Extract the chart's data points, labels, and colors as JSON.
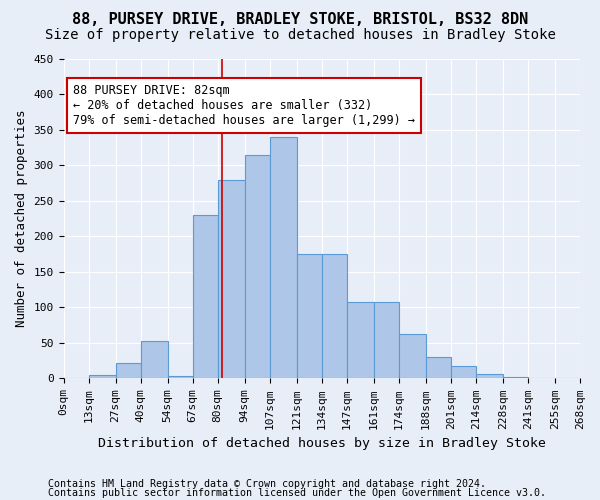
{
  "title": "88, PURSEY DRIVE, BRADLEY STOKE, BRISTOL, BS32 8DN",
  "subtitle": "Size of property relative to detached houses in Bradley Stoke",
  "xlabel": "Distribution of detached houses by size in Bradley Stoke",
  "ylabel": "Number of detached properties",
  "footnote1": "Contains HM Land Registry data © Crown copyright and database right 2024.",
  "footnote2": "Contains public sector information licensed under the Open Government Licence v3.0.",
  "annotation_title": "88 PURSEY DRIVE: 82sqm",
  "annotation_line1": "← 20% of detached houses are smaller (332)",
  "annotation_line2": "79% of semi-detached houses are larger (1,299) →",
  "property_line_x": 82,
  "bar_edges": [
    0,
    13,
    27,
    40,
    54,
    67,
    80,
    94,
    107,
    121,
    134,
    147,
    161,
    174,
    188,
    201,
    214,
    228,
    241,
    255,
    268
  ],
  "bar_heights": [
    0,
    5,
    22,
    53,
    4,
    230,
    280,
    315,
    340,
    175,
    175,
    108,
    108,
    63,
    30,
    18,
    6,
    2,
    0,
    0
  ],
  "bar_color": "#aec6e8",
  "bar_edge_color": "#5b9bd5",
  "line_color": "#cc0000",
  "bg_color": "#e8eef8",
  "annotation_box_color": "#ffffff",
  "annotation_box_edge": "#cc0000",
  "ylim": [
    0,
    450
  ],
  "yticks": [
    0,
    50,
    100,
    150,
    200,
    250,
    300,
    350,
    400,
    450
  ],
  "title_fontsize": 11,
  "subtitle_fontsize": 10,
  "xlabel_fontsize": 9.5,
  "ylabel_fontsize": 9,
  "tick_fontsize": 8,
  "annotation_fontsize": 8.5,
  "footnote_fontsize": 7.2
}
